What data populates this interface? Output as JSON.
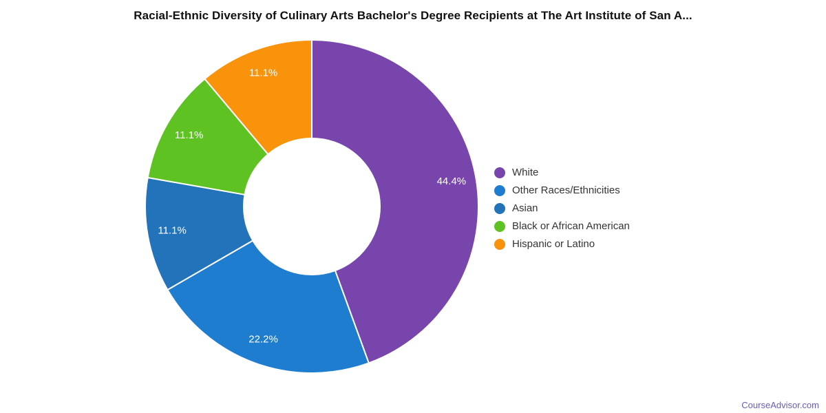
{
  "chart_data": {
    "type": "pie",
    "subtype": "donut",
    "title": "Racial-Ethnic Diversity of Culinary Arts Bachelor's Degree Recipients at The Art Institute of San A...",
    "categories": [
      "White",
      "Other Races/Ethnicities",
      "Asian",
      "Black or African American",
      "Hispanic or Latino"
    ],
    "values": [
      44.4,
      22.2,
      11.1,
      11.1,
      11.1
    ],
    "slice_labels": [
      "44.4%",
      "22.2%",
      "11.1%",
      "11.1%",
      "11.1%"
    ],
    "colors": [
      "#7845AD",
      "#1E7DCE",
      "#2273B9",
      "#5EC223",
      "#F8930B"
    ],
    "slice_label_color": "#FFFFFF",
    "slice_separator_color": "#FFFFFF",
    "legend_position": "right",
    "start_angle_deg": 0,
    "direction": "clockwise"
  },
  "attribution": {
    "text": "CourseAdvisor.com"
  }
}
